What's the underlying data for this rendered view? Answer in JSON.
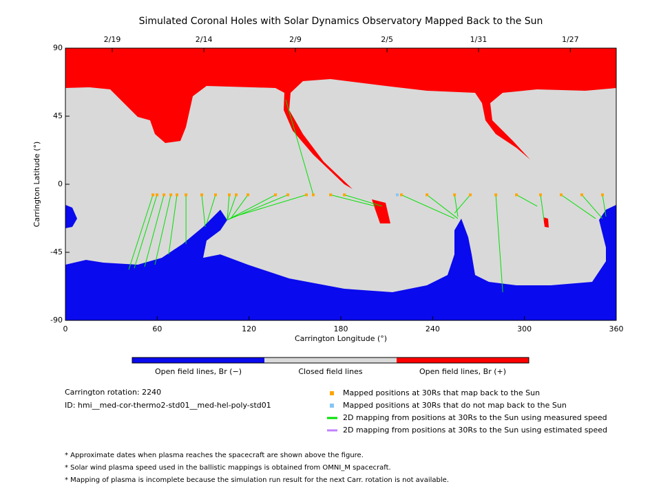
{
  "chart_data": {
    "type": "map",
    "title": "Simulated Coronal Holes with Solar Dynamics Observatory Mapped Back to the Sun",
    "xlabel": "Carrington Longitude (°)",
    "ylabel": "Carrington Latitude (°)",
    "xlim": [
      0,
      360
    ],
    "ylim": [
      -90,
      90
    ],
    "xticks": [
      0,
      60,
      120,
      180,
      240,
      300,
      360
    ],
    "yticks": [
      -90,
      -45,
      0,
      45,
      90
    ],
    "top_ticks": [
      {
        "value": 30.6,
        "label": "2/19"
      },
      {
        "value": 90.5,
        "label": "2/14"
      },
      {
        "value": 150.3,
        "label": "2/9"
      },
      {
        "value": 210.2,
        "label": "2/5"
      },
      {
        "value": 270,
        "label": "1/31"
      },
      {
        "value": 330,
        "label": "1/27"
      }
    ],
    "colorbar": [
      {
        "label": "Open field lines, Br (−)",
        "color": "#0a0aee"
      },
      {
        "label": "Closed field lines",
        "color": "#d9d9d9"
      },
      {
        "label": "Open field lines, Br (+)",
        "color": "#ff0000"
      }
    ],
    "series": [
      {
        "name": "Mapped positions at 30Rs that map back to the Sun",
        "color": "#ffa500",
        "lon": [
          57.2,
          59.9,
          64.4,
          68.9,
          72.9,
          78.8,
          89.1,
          98.1,
          107.1,
          111.6,
          119.3,
          137.3,
          145.4,
          157.5,
          162.0,
          173.3,
          182.3,
          219.6,
          236.3,
          254.3,
          264.6,
          281.3,
          294.8,
          310.5,
          324.0,
          337.5,
          351.0
        ],
        "lat": [
          -7,
          -7,
          -7,
          -7,
          -7,
          -7,
          -7,
          -7,
          -7,
          -7,
          -7,
          -7,
          -7,
          -7,
          -7,
          -7,
          -7,
          -7,
          -7,
          -7,
          -7,
          -7,
          -7,
          -7,
          -7,
          -7,
          -7
        ]
      },
      {
        "name": "Mapped positions at 30Rs that do not map back to the Sun",
        "color": "#87c5f5",
        "lon": [
          216.9
        ],
        "lat": [
          -7
        ]
      }
    ],
    "lines": [
      {
        "name": "2D mapping from positions at 30Rs to the Sun using measured speed",
        "color": "#00e000"
      },
      {
        "name": "2D mapping from positions at 30Rs to the Sun using estimated speed",
        "color": "#c080ff"
      }
    ],
    "footpoints": {
      "lon": [
        41.4,
        45.0,
        51.8,
        58.5,
        67.5,
        78.8,
        91.4,
        92.3,
        105.8,
        105.8,
        108.0,
        105.8,
        105.8,
        110.3,
        144.0,
        202.5,
        207.0,
        254.3,
        256.5,
        256.5,
        254.3,
        285.8,
        308.3,
        312.8,
        346.5,
        351.0,
        353.3
      ],
      "lat": [
        -56.4,
        -55.5,
        -54.5,
        -53.2,
        -46.4,
        -39.5,
        -28.2,
        -25.9,
        -22.7,
        -23.6,
        -22.7,
        -23.6,
        -23.6,
        -21.4,
        55.9,
        -14.5,
        -14.5,
        -22.7,
        -22.7,
        -21.4,
        -19.1,
        -71.4,
        -14.5,
        -23.6,
        -22.7,
        -22.7,
        -21.4
      ]
    },
    "info": [
      "Carrington rotation: 2240",
      "ID: hmi__med-cor-thermo2-std01__med-hel-poly-std01"
    ],
    "notes": [
      "* Approximate dates when plasma reaches the spacecraft are shown above the figure.",
      "* Solar wind plasma speed used in the ballistic mappings is obtained from OMNI_M spacecraft.",
      "* Mapping of plasma is incomplete because the simulation run result for the next Carr. rotation is not available."
    ]
  }
}
